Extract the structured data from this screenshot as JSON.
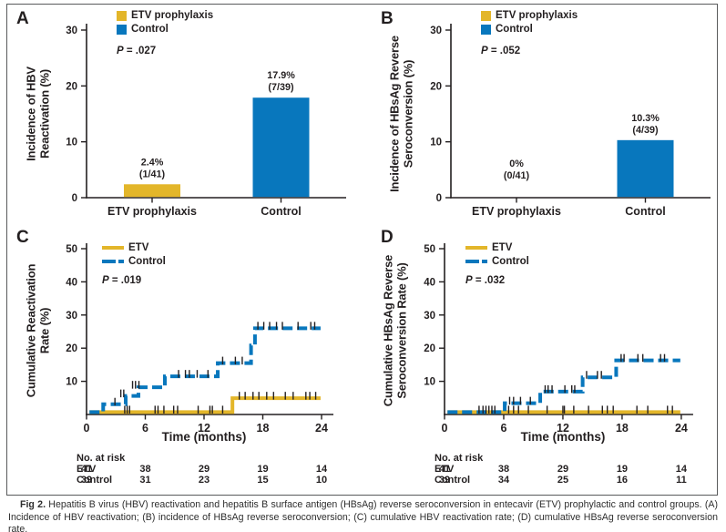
{
  "figure": {
    "caption_label": "Fig 2.",
    "caption_text": " Hepatitis B virus (HBV) reactivation and hepatitis B surface antigen (HBsAg) reverse seroconversion in entecavir (ETV) prophylactic and control groups. (A) Incidence of HBV reactivation; (B) incidence of HBsAg reverse seroconversion; (C) cumulative HBV reactivation rate; (D) cumulative HBsAg reverse seroconversion rate."
  },
  "colors": {
    "etv": "#E3B62A",
    "control": "#0877BD",
    "axis": "#231F20"
  },
  "panels": {
    "a": {
      "letter": "A",
      "ylabel1": "Incidence of HBV",
      "ylabel2": "Reactivation (%)",
      "legend1": "ETV prophylaxis",
      "legend2": "Control",
      "p_italic": "P",
      "p_rest": " = .027"
    },
    "b": {
      "letter": "B",
      "ylabel1": "Incidence of HBsAg Reverse",
      "ylabel2": "Seroconversion (%)",
      "legend1": "ETV prophylaxis",
      "legend2": "Control",
      "p_italic": "P",
      "p_rest": " = .052"
    },
    "c": {
      "letter": "C",
      "ylabel1": "Cumulative Reactivation",
      "ylabel2": "Rate (%)",
      "legend1": "ETV",
      "legend2": "Control",
      "p_italic": "P",
      "p_rest": " = .019",
      "xlabel": "Time (months)",
      "risk_header": "No. at risk",
      "risk_row1": "ETV",
      "risk_row2": "Control"
    },
    "d": {
      "letter": "D",
      "ylabel1": "Cumulative HBsAg Reverse",
      "ylabel2": "Seroconversion Rate (%)",
      "legend1": "ETV",
      "legend2": "Control",
      "p_italic": "P",
      "p_rest": " = .032",
      "xlabel": "Time (months)",
      "risk_header": "No. at risk",
      "risk_row1": "ETV",
      "risk_row2": "Control"
    }
  },
  "chart_data": [
    {
      "id": "A",
      "type": "bar",
      "ylabel": "Incidence of HBV Reactivation (%)",
      "categories": [
        "ETV prophylaxis",
        "Control"
      ],
      "values": [
        2.4,
        17.9
      ],
      "value_labels": [
        [
          "2.4%",
          "(1/41)"
        ],
        [
          "17.9%",
          "(7/39)"
        ]
      ],
      "series_colors": [
        "etv",
        "control"
      ],
      "yticks": [
        0,
        10,
        20,
        30
      ],
      "ylim": [
        0,
        32
      ],
      "legend": [
        "ETV prophylaxis",
        "Control"
      ],
      "p_value": "P = .027"
    },
    {
      "id": "B",
      "type": "bar",
      "ylabel": "Incidence of HBsAg Reverse Seroconversion (%)",
      "categories": [
        "ETV prophylaxis",
        "Control"
      ],
      "values": [
        0,
        10.3
      ],
      "value_labels": [
        [
          "0%",
          "(0/41)"
        ],
        [
          "10.3%",
          "(4/39)"
        ]
      ],
      "series_colors": [
        "etv",
        "control"
      ],
      "yticks": [
        0,
        10,
        20,
        30
      ],
      "ylim": [
        0,
        32
      ],
      "legend": [
        "ETV prophylaxis",
        "Control"
      ],
      "p_value": "P = .052"
    },
    {
      "id": "C",
      "type": "line",
      "ylabel": "Cumulative Reactivation Rate (%)",
      "xlabel": "Time (months)",
      "xticks": [
        0,
        6,
        12,
        18,
        24
      ],
      "xlim": [
        0,
        25
      ],
      "yticks": [
        10,
        20,
        30,
        40,
        50
      ],
      "ylim": [
        0,
        52
      ],
      "p_value": "P = .019",
      "legend": [
        "ETV",
        "Control"
      ],
      "series": [
        {
          "name": "ETV",
          "color": "etv",
          "dash": false,
          "points": [
            [
              0.3,
              0
            ],
            [
              14.9,
              0
            ],
            [
              14.9,
              4.9
            ],
            [
              23.9,
              4.9
            ]
          ],
          "censors": [
            [
              3.9,
              0
            ],
            [
              4.15,
              0
            ],
            [
              4.4,
              0
            ],
            [
              7.0,
              0
            ],
            [
              7.3,
              0
            ],
            [
              7.9,
              0
            ],
            [
              8.9,
              0
            ],
            [
              9.3,
              0
            ],
            [
              11.4,
              0
            ],
            [
              12.6,
              0
            ],
            [
              12.85,
              0
            ],
            [
              13.9,
              0
            ],
            [
              15.6,
              4.9
            ],
            [
              16.2,
              4.9
            ],
            [
              17.0,
              4.9
            ],
            [
              17.6,
              4.9
            ],
            [
              18.4,
              4.9
            ],
            [
              19.1,
              4.9
            ],
            [
              20.3,
              4.9
            ],
            [
              21.1,
              4.9
            ],
            [
              22.4,
              4.9
            ],
            [
              22.8,
              4.9
            ],
            [
              23.4,
              4.9
            ]
          ]
        },
        {
          "name": "Control",
          "color": "control",
          "dash": true,
          "points": [
            [
              0.3,
              0
            ],
            [
              1.7,
              0
            ],
            [
              1.7,
              3.1
            ],
            [
              4.0,
              3.1
            ],
            [
              4.0,
              5.6
            ],
            [
              5.3,
              5.6
            ],
            [
              5.3,
              8.2
            ],
            [
              8.0,
              8.2
            ],
            [
              8.0,
              11.5
            ],
            [
              13.4,
              11.5
            ],
            [
              13.4,
              15.5
            ],
            [
              16.8,
              15.5
            ],
            [
              16.8,
              20.8
            ],
            [
              17.2,
              20.8
            ],
            [
              17.2,
              26.0
            ],
            [
              23.9,
              26.0
            ]
          ],
          "censors": [
            [
              2.9,
              3.1
            ],
            [
              3.5,
              5.6
            ],
            [
              3.8,
              5.6
            ],
            [
              4.7,
              8.2
            ],
            [
              5.0,
              8.2
            ],
            [
              5.35,
              8.2
            ],
            [
              9.4,
              11.5
            ],
            [
              10.1,
              11.5
            ],
            [
              10.5,
              11.5
            ],
            [
              11.3,
              11.5
            ],
            [
              12.4,
              11.5
            ],
            [
              13.9,
              15.5
            ],
            [
              15.2,
              15.5
            ],
            [
              15.9,
              15.5
            ],
            [
              17.5,
              26.0
            ],
            [
              18.1,
              26.0
            ],
            [
              18.7,
              26.0
            ],
            [
              19.4,
              26.0
            ],
            [
              20.0,
              26.0
            ],
            [
              21.6,
              26.0
            ],
            [
              22.9,
              26.0
            ],
            [
              23.3,
              26.0
            ]
          ]
        }
      ],
      "risk_table": {
        "header": "No. at risk",
        "columns": [
          0,
          6,
          12,
          18,
          24
        ],
        "rows": [
          {
            "label": "ETV",
            "values": [
              41,
              38,
              29,
              19,
              14
            ]
          },
          {
            "label": "Control",
            "values": [
              39,
              31,
              23,
              15,
              10
            ]
          }
        ]
      }
    },
    {
      "id": "D",
      "type": "line",
      "ylabel": "Cumulative HBsAg Reverse Seroconversion Rate (%)",
      "xlabel": "Time (months)",
      "xticks": [
        0,
        6,
        12,
        18,
        24
      ],
      "xlim": [
        0,
        25
      ],
      "yticks": [
        10,
        20,
        30,
        40,
        50
      ],
      "ylim": [
        0,
        52
      ],
      "p_value": "P = .032",
      "legend": [
        "ETV",
        "Control"
      ],
      "series": [
        {
          "name": "ETV",
          "color": "etv",
          "dash": false,
          "points": [
            [
              0.3,
              0
            ],
            [
              23.9,
              0
            ]
          ],
          "censors": [
            [
              3.5,
              0
            ],
            [
              3.9,
              0
            ],
            [
              4.2,
              0
            ],
            [
              4.5,
              0
            ],
            [
              4.8,
              0
            ],
            [
              5.1,
              0
            ],
            [
              6.5,
              0
            ],
            [
              7.0,
              0
            ],
            [
              7.5,
              0
            ],
            [
              8.5,
              0
            ],
            [
              10.4,
              0
            ],
            [
              12.0,
              0
            ],
            [
              12.15,
              0
            ],
            [
              13.1,
              0
            ],
            [
              14.6,
              0
            ],
            [
              16.0,
              0
            ],
            [
              16.5,
              0
            ],
            [
              17.1,
              0
            ],
            [
              19.5,
              0
            ],
            [
              20.6,
              0
            ],
            [
              22.6,
              0
            ],
            [
              23.1,
              0
            ]
          ]
        },
        {
          "name": "Control",
          "color": "control",
          "dash": true,
          "points": [
            [
              0.3,
              0
            ],
            [
              6.1,
              0
            ],
            [
              6.1,
              3.4
            ],
            [
              9.7,
              3.4
            ],
            [
              9.7,
              6.9
            ],
            [
              14.0,
              6.9
            ],
            [
              14.0,
              11.2
            ],
            [
              17.4,
              11.2
            ],
            [
              17.4,
              16.3
            ],
            [
              23.9,
              16.3
            ]
          ],
          "censors": [
            [
              6.6,
              3.4
            ],
            [
              7.0,
              3.4
            ],
            [
              7.7,
              3.4
            ],
            [
              8.7,
              3.4
            ],
            [
              10.2,
              6.9
            ],
            [
              10.5,
              6.9
            ],
            [
              10.9,
              6.9
            ],
            [
              12.2,
              6.9
            ],
            [
              12.9,
              6.9
            ],
            [
              13.2,
              6.9
            ],
            [
              14.4,
              11.2
            ],
            [
              15.5,
              11.2
            ],
            [
              15.9,
              11.2
            ],
            [
              17.9,
              16.3
            ],
            [
              18.2,
              16.3
            ],
            [
              19.6,
              16.3
            ],
            [
              20.1,
              16.3
            ],
            [
              21.9,
              16.3
            ],
            [
              22.3,
              16.3
            ]
          ]
        }
      ],
      "risk_table": {
        "header": "No. at risk",
        "columns": [
          0,
          6,
          12,
          18,
          24
        ],
        "rows": [
          {
            "label": "ETV",
            "values": [
              41,
              38,
              29,
              19,
              14
            ]
          },
          {
            "label": "Control",
            "values": [
              39,
              34,
              25,
              16,
              11
            ]
          }
        ]
      }
    }
  ]
}
